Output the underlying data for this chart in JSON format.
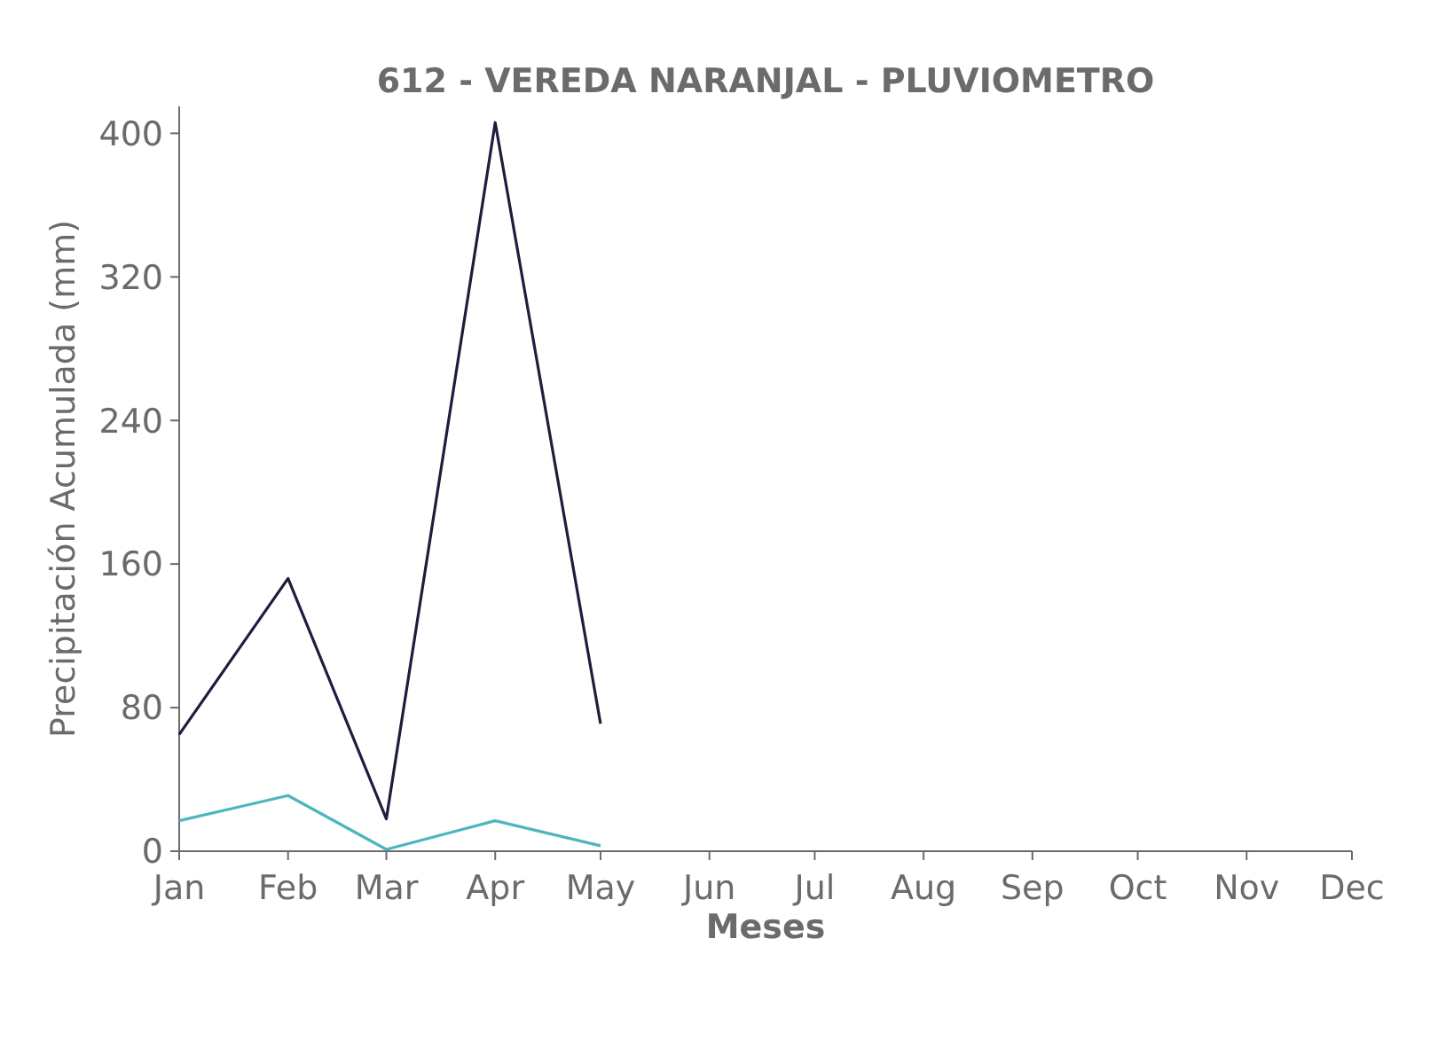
{
  "chart_data": {
    "type": "line",
    "title": "612 - VEREDA NARANJAL - PLUVIOMETRO",
    "xlabel": "Meses",
    "ylabel": "Precipitación Acumulada (mm)",
    "x": [
      "--01-01",
      "--02-01",
      "--03-01",
      "--04-01",
      "--05-01"
    ],
    "series": [
      {
        "color": "#1f1d3d",
        "values": [
          65,
          152,
          18,
          406,
          71
        ]
      },
      {
        "color": "#4db6bd",
        "values": [
          17,
          31,
          1,
          17,
          3
        ]
      }
    ],
    "xlim": [
      "--01-01",
      "--12-01"
    ],
    "xticks": [
      {
        "value": "--01-01",
        "label": "Jan"
      },
      {
        "value": "--02-01",
        "label": "Feb"
      },
      {
        "value": "--03-01",
        "label": "Mar"
      },
      {
        "value": "--04-01",
        "label": "Apr"
      },
      {
        "value": "--05-01",
        "label": "May"
      },
      {
        "value": "--06-01",
        "label": "Jun"
      },
      {
        "value": "--07-01",
        "label": "Jul"
      },
      {
        "value": "--08-01",
        "label": "Aug"
      },
      {
        "value": "--09-01",
        "label": "Sep"
      },
      {
        "value": "--10-01",
        "label": "Oct"
      },
      {
        "value": "--11-01",
        "label": "Nov"
      },
      {
        "value": "--12-01",
        "label": "Dec"
      }
    ],
    "ylim": [
      0,
      415
    ],
    "yticks": [
      0,
      80,
      160,
      240,
      320,
      400
    ],
    "grid": false,
    "marker": "none",
    "line_style": "solid"
  }
}
